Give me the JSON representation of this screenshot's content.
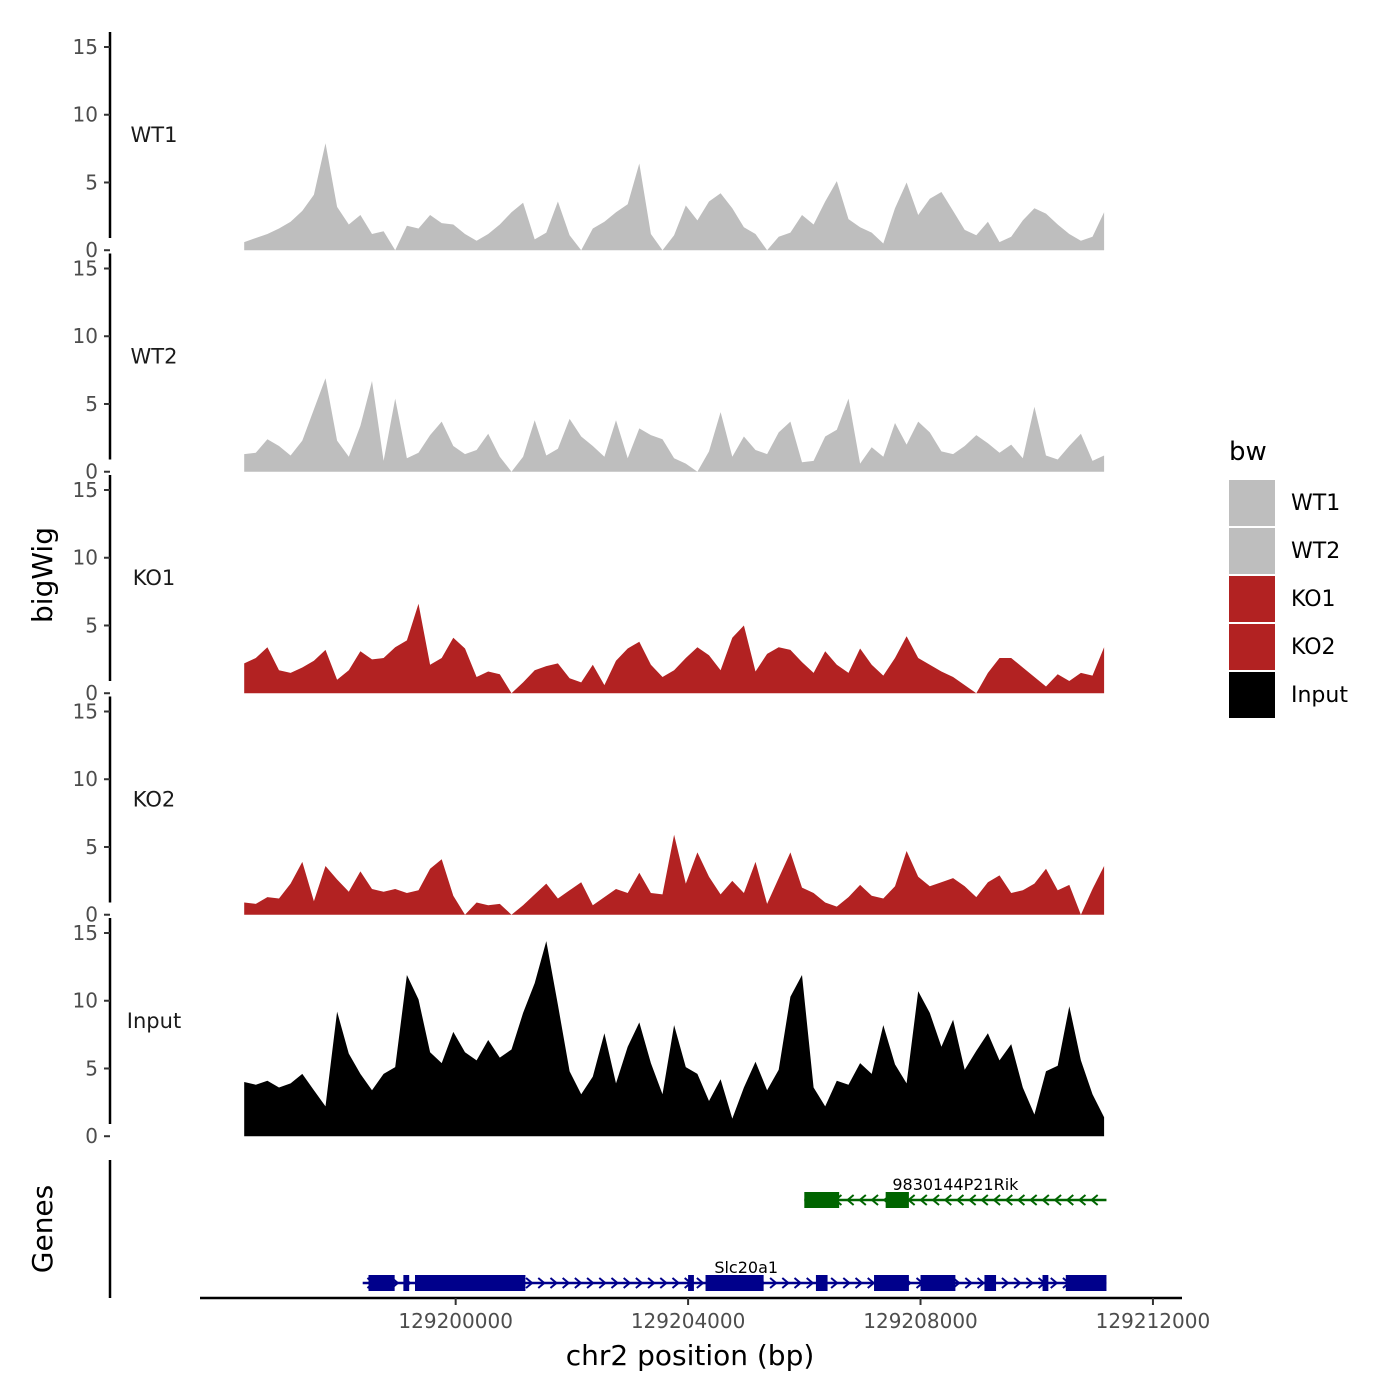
{
  "chart_data": {
    "type": "area",
    "ylabel": "bigWig",
    "genes_label": "Genes",
    "xlabel": "chr2 position (bp)",
    "xlim": [
      129195600,
      129212500
    ],
    "x_ticks": [
      129200000,
      129204000,
      129208000,
      129212000
    ],
    "x_tick_labels": [
      "129200000",
      "129204000",
      "129208000",
      "129212000"
    ],
    "ylim": [
      0,
      15
    ],
    "y_ticks": [
      0,
      5,
      10,
      15
    ],
    "y_tick_labels": [
      "0",
      "5",
      "10",
      "15"
    ],
    "legend": {
      "title": "bw",
      "position": "right"
    },
    "colors": {
      "WT1": "#bebebe",
      "WT2": "#bebebe",
      "KO1": "#b22222",
      "KO2": "#b22222",
      "Input": "#000000"
    },
    "series": [
      {
        "name": "WT1",
        "x": [
          129196360,
          129196560,
          129196760,
          129196960,
          129197160,
          129197360,
          129197560,
          129197760,
          129197960,
          129198160,
          129198360,
          129198560,
          129198760,
          129198960,
          129199160,
          129199360,
          129199560,
          129199760,
          129199960,
          129200160,
          129200360,
          129200560,
          129200760,
          129200960,
          129201160,
          129201360,
          129201560,
          129201760,
          129201960,
          129202160,
          129202360,
          129202560,
          129202760,
          129202960,
          129203160,
          129203360,
          129203560,
          129203760,
          129203960,
          129204160,
          129204360,
          129204560,
          129204760,
          129204960,
          129205160,
          129205360,
          129205560,
          129205760,
          129205960,
          129206160,
          129206360,
          129206560,
          129206760,
          129206960,
          129207160,
          129207360,
          129207560,
          129207760,
          129207960,
          129208160,
          129208360,
          129208560,
          129208760,
          129208960,
          129209160,
          129209360,
          129209560,
          129209760,
          129209960,
          129210160,
          129210360,
          129210560,
          129210760,
          129210960,
          129211160
        ],
        "values": [
          0.6,
          0.9,
          1.2,
          1.6,
          2.1,
          2.9,
          4.1,
          7.9,
          3.2,
          1.9,
          2.6,
          1.2,
          1.4,
          0.0,
          1.8,
          1.6,
          2.6,
          2.0,
          1.9,
          1.2,
          0.7,
          1.2,
          1.9,
          2.8,
          3.5,
          0.8,
          1.3,
          3.6,
          1.1,
          0.0,
          1.6,
          2.1,
          2.8,
          3.4,
          6.4,
          1.2,
          0.0,
          1.1,
          3.3,
          2.2,
          3.6,
          4.2,
          3.1,
          1.7,
          1.2,
          0.0,
          1.0,
          1.3,
          2.6,
          1.9,
          3.6,
          5.1,
          2.3,
          1.7,
          1.3,
          0.5,
          3.1,
          5.0,
          2.6,
          3.8,
          4.3,
          2.9,
          1.5,
          1.1,
          2.1,
          0.6,
          1.0,
          2.2,
          3.1,
          2.7,
          1.9,
          1.2,
          0.7,
          1.0,
          2.8
        ]
      },
      {
        "name": "WT2",
        "x": [
          129196360,
          129196560,
          129196760,
          129196960,
          129197160,
          129197360,
          129197560,
          129197760,
          129197960,
          129198160,
          129198360,
          129198560,
          129198760,
          129198960,
          129199160,
          129199360,
          129199560,
          129199760,
          129199960,
          129200160,
          129200360,
          129200560,
          129200760,
          129200960,
          129201160,
          129201360,
          129201560,
          129201760,
          129201960,
          129202160,
          129202360,
          129202560,
          129202760,
          129202960,
          129203160,
          129203360,
          129203560,
          129203760,
          129203960,
          129204160,
          129204360,
          129204560,
          129204760,
          129204960,
          129205160,
          129205360,
          129205560,
          129205760,
          129205960,
          129206160,
          129206360,
          129206560,
          129206760,
          129206960,
          129207160,
          129207360,
          129207560,
          129207760,
          129207960,
          129208160,
          129208360,
          129208560,
          129208760,
          129208960,
          129209160,
          129209360,
          129209560,
          129209760,
          129209960,
          129210160,
          129210360,
          129210560,
          129210760,
          129210960,
          129211160
        ],
        "values": [
          1.3,
          1.4,
          2.4,
          1.9,
          1.2,
          2.3,
          4.6,
          6.9,
          2.3,
          1.1,
          3.4,
          6.7,
          0.8,
          5.4,
          1.0,
          1.4,
          2.7,
          3.7,
          1.9,
          1.3,
          1.6,
          2.8,
          1.1,
          0.0,
          1.1,
          3.8,
          1.2,
          1.7,
          3.9,
          2.6,
          1.9,
          1.1,
          3.8,
          1.0,
          3.2,
          2.7,
          2.4,
          1.0,
          0.6,
          0.0,
          1.5,
          4.4,
          1.1,
          2.6,
          1.6,
          1.3,
          2.9,
          3.7,
          0.7,
          0.8,
          2.6,
          3.1,
          5.4,
          0.6,
          1.8,
          1.1,
          3.6,
          2.0,
          3.7,
          2.9,
          1.5,
          1.3,
          1.9,
          2.7,
          2.1,
          1.4,
          2.0,
          1.0,
          4.8,
          1.2,
          0.9,
          1.9,
          2.8,
          0.8,
          1.2
        ]
      },
      {
        "name": "KO1",
        "x": [
          129196360,
          129196560,
          129196760,
          129196960,
          129197160,
          129197360,
          129197560,
          129197760,
          129197960,
          129198160,
          129198360,
          129198560,
          129198760,
          129198960,
          129199160,
          129199360,
          129199560,
          129199760,
          129199960,
          129200160,
          129200360,
          129200560,
          129200760,
          129200960,
          129201160,
          129201360,
          129201560,
          129201760,
          129201960,
          129202160,
          129202360,
          129202560,
          129202760,
          129202960,
          129203160,
          129203360,
          129203560,
          129203760,
          129203960,
          129204160,
          129204360,
          129204560,
          129204760,
          129204960,
          129205160,
          129205360,
          129205560,
          129205760,
          129205960,
          129206160,
          129206360,
          129206560,
          129206760,
          129206960,
          129207160,
          129207360,
          129207560,
          129207760,
          129207960,
          129208160,
          129208360,
          129208560,
          129208760,
          129208960,
          129209160,
          129209360,
          129209560,
          129209760,
          129209960,
          129210160,
          129210360,
          129210560,
          129210760,
          129210960,
          129211160
        ],
        "values": [
          2.2,
          2.6,
          3.4,
          1.7,
          1.5,
          1.9,
          2.4,
          3.2,
          1.0,
          1.7,
          3.1,
          2.5,
          2.6,
          3.4,
          3.9,
          6.6,
          2.1,
          2.6,
          4.1,
          3.3,
          1.2,
          1.6,
          1.4,
          0.0,
          0.8,
          1.7,
          2.0,
          2.2,
          1.1,
          0.8,
          2.1,
          0.6,
          2.4,
          3.3,
          3.8,
          2.1,
          1.2,
          1.7,
          2.6,
          3.4,
          2.8,
          1.7,
          4.1,
          5.0,
          1.6,
          2.9,
          3.4,
          3.2,
          2.3,
          1.5,
          3.1,
          2.1,
          1.5,
          3.3,
          2.1,
          1.3,
          2.6,
          4.2,
          2.6,
          2.1,
          1.6,
          1.2,
          0.6,
          0.0,
          1.5,
          2.6,
          2.6,
          1.9,
          1.2,
          0.5,
          1.4,
          0.9,
          1.5,
          1.3,
          3.4
        ]
      },
      {
        "name": "KO2",
        "x": [
          129196360,
          129196560,
          129196760,
          129196960,
          129197160,
          129197360,
          129197560,
          129197760,
          129197960,
          129198160,
          129198360,
          129198560,
          129198760,
          129198960,
          129199160,
          129199360,
          129199560,
          129199760,
          129199960,
          129200160,
          129200360,
          129200560,
          129200760,
          129200960,
          129201160,
          129201360,
          129201560,
          129201760,
          129201960,
          129202160,
          129202360,
          129202560,
          129202760,
          129202960,
          129203160,
          129203360,
          129203560,
          129203760,
          129203960,
          129204160,
          129204360,
          129204560,
          129204760,
          129204960,
          129205160,
          129205360,
          129205560,
          129205760,
          129205960,
          129206160,
          129206360,
          129206560,
          129206760,
          129206960,
          129207160,
          129207360,
          129207560,
          129207760,
          129207960,
          129208160,
          129208360,
          129208560,
          129208760,
          129208960,
          129209160,
          129209360,
          129209560,
          129209760,
          129209960,
          129210160,
          129210360,
          129210560,
          129210760,
          129210960,
          129211160
        ],
        "values": [
          0.9,
          0.8,
          1.3,
          1.2,
          2.3,
          3.9,
          1.0,
          3.6,
          2.6,
          1.7,
          3.2,
          1.9,
          1.7,
          1.9,
          1.6,
          1.8,
          3.4,
          4.1,
          1.4,
          0.0,
          0.9,
          0.7,
          0.8,
          0.0,
          0.7,
          1.5,
          2.3,
          1.2,
          1.8,
          2.4,
          0.7,
          1.3,
          1.9,
          1.6,
          3.1,
          1.6,
          1.5,
          5.9,
          2.3,
          4.6,
          2.8,
          1.5,
          2.5,
          1.6,
          3.9,
          0.8,
          2.7,
          4.6,
          2.0,
          1.6,
          0.9,
          0.6,
          1.3,
          2.2,
          1.4,
          1.2,
          2.1,
          4.7,
          2.8,
          2.1,
          2.4,
          2.7,
          2.1,
          1.3,
          2.4,
          2.9,
          1.6,
          1.8,
          2.3,
          3.4,
          1.8,
          2.2,
          0.0,
          1.9,
          3.6
        ]
      },
      {
        "name": "Input",
        "x": [
          129196360,
          129196560,
          129196760,
          129196960,
          129197160,
          129197360,
          129197560,
          129197760,
          129197960,
          129198160,
          129198360,
          129198560,
          129198760,
          129198960,
          129199160,
          129199360,
          129199560,
          129199760,
          129199960,
          129200160,
          129200360,
          129200560,
          129200760,
          129200960,
          129201160,
          129201360,
          129201560,
          129201760,
          129201960,
          129202160,
          129202360,
          129202560,
          129202760,
          129202960,
          129203160,
          129203360,
          129203560,
          129203760,
          129203960,
          129204160,
          129204360,
          129204560,
          129204760,
          129204960,
          129205160,
          129205360,
          129205560,
          129205760,
          129205960,
          129206160,
          129206360,
          129206560,
          129206760,
          129206960,
          129207160,
          129207360,
          129207560,
          129207760,
          129207960,
          129208160,
          129208360,
          129208560,
          129208760,
          129208960,
          129209160,
          129209360,
          129209560,
          129209760,
          129209960,
          129210160,
          129210360,
          129210560,
          129210760,
          129210960,
          129211160
        ],
        "values": [
          4.0,
          3.8,
          4.1,
          3.6,
          3.9,
          4.6,
          3.4,
          2.2,
          9.2,
          6.1,
          4.6,
          3.4,
          4.6,
          5.1,
          11.9,
          10.1,
          6.2,
          5.4,
          7.7,
          6.2,
          5.6,
          7.1,
          5.8,
          6.4,
          9.1,
          11.3,
          14.4,
          9.7,
          4.8,
          3.1,
          4.4,
          7.6,
          3.9,
          6.6,
          8.4,
          5.4,
          3.1,
          8.2,
          5.1,
          4.6,
          2.6,
          4.2,
          1.3,
          3.6,
          5.5,
          3.4,
          4.9,
          10.3,
          11.9,
          3.6,
          2.2,
          4.1,
          3.8,
          5.4,
          4.6,
          8.2,
          5.3,
          3.9,
          10.7,
          9.1,
          6.6,
          8.6,
          4.9,
          6.3,
          7.6,
          5.6,
          6.8,
          3.6,
          1.6,
          4.8,
          5.2,
          9.6,
          5.6,
          3.1,
          1.4
        ]
      }
    ],
    "genes": [
      {
        "name": "9830144P21Rik",
        "strand": "-",
        "color": "#006400",
        "start": 129206000,
        "end": 129211200,
        "exons": [
          [
            129206000,
            129206600
          ],
          [
            129207400,
            129207800
          ]
        ]
      },
      {
        "name": "Slc20a1",
        "strand": "+",
        "color": "#00008b",
        "start": 129198400,
        "end": 129211200,
        "exons": [
          [
            129198500,
            129198950
          ],
          [
            129199100,
            129199200
          ],
          [
            129199300,
            129201200
          ],
          [
            129204000,
            129204100
          ],
          [
            129204300,
            129205300
          ],
          [
            129206200,
            129206400
          ],
          [
            129207200,
            129207800
          ],
          [
            129208000,
            129208600
          ],
          [
            129209100,
            129209300
          ],
          [
            129210100,
            129210200
          ],
          [
            129210500,
            129211200
          ]
        ]
      }
    ]
  }
}
